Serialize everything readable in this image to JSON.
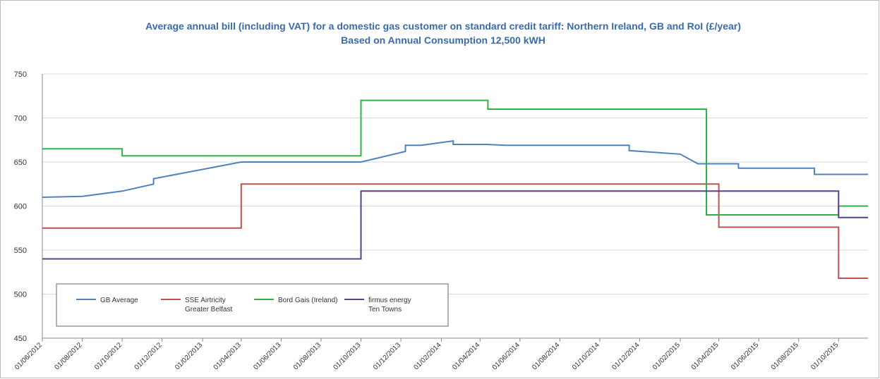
{
  "chart_data": {
    "type": "line",
    "title": "Average annual bill (including VAT) for a domestic gas customer on standard  credit tariff: Northern Ireland, GB and RoI (£/year)",
    "subtitle": "Based on Annual Consumption  12,500 kWH",
    "xlim": [
      "01/06/2012",
      "15/11/2015"
    ],
    "xticks": [
      "01/06/2012",
      "01/08/2012",
      "01/10/2012",
      "01/12/2012",
      "01/02/2013",
      "01/04/2013",
      "01/06/2013",
      "01/08/2013",
      "01/10/2013",
      "01/12/2013",
      "01/02/2014",
      "01/04/2014",
      "01/06/2014",
      "01/08/2014",
      "01/10/2014",
      "01/12/2014",
      "01/02/2015",
      "01/04/2015",
      "01/06/2015",
      "01/08/2015",
      "01/10/2015"
    ],
    "ylim": [
      450,
      750
    ],
    "yticks": [
      450,
      500,
      550,
      600,
      650,
      700,
      750
    ],
    "grid": true,
    "legend": "lower left",
    "series": [
      {
        "name": "GB Average",
        "color": "#4f81bd",
        "x": [
          "01/06/2012",
          "01/08/2012",
          "01/10/2012",
          "18/11/2012",
          "18/11/2012",
          "01/04/2013",
          "01/10/2013",
          "08/12/2013",
          "08/12/2013",
          "01/01/2014",
          "19/02/2014",
          "19/02/2014",
          "10/04/2014",
          "10/05/2014",
          "15/11/2014",
          "15/11/2014",
          "01/02/2015",
          "28/02/2015",
          "01/05/2015",
          "01/05/2015",
          "25/08/2015",
          "25/08/2015",
          "15/11/2015"
        ],
        "values": [
          610,
          611,
          617,
          625,
          631,
          650,
          650,
          662,
          669,
          669,
          674,
          670,
          670,
          669,
          669,
          663,
          659,
          648,
          648,
          643,
          643,
          636,
          636
        ]
      },
      {
        "name": "SSE Airtricity\nGreater Belfast",
        "color": "#c0504d",
        "x": [
          "01/06/2012",
          "01/04/2013",
          "01/04/2013",
          "01/04/2015",
          "01/04/2015",
          "01/10/2015",
          "01/10/2015",
          "15/11/2015"
        ],
        "values": [
          575,
          575,
          625,
          625,
          576,
          576,
          518,
          518
        ]
      },
      {
        "name": "Bord Gais (Ireland)",
        "color": "#2db34a",
        "x": [
          "01/06/2012",
          "01/10/2012",
          "01/10/2012",
          "01/10/2013",
          "01/10/2013",
          "13/04/2014",
          "13/04/2014",
          "13/03/2015",
          "13/03/2015",
          "01/10/2015",
          "01/10/2015",
          "15/11/2015"
        ],
        "values": [
          665,
          665,
          657,
          657,
          720,
          720,
          710,
          710,
          590,
          590,
          600,
          600
        ]
      },
      {
        "name": "firmus energy\nTen Towns",
        "color": "#5b3f8c",
        "x": [
          "01/06/2012",
          "01/10/2013",
          "01/10/2013",
          "01/10/2015",
          "01/10/2015",
          "15/11/2015"
        ],
        "values": [
          540,
          540,
          617,
          617,
          587,
          587
        ]
      }
    ]
  }
}
